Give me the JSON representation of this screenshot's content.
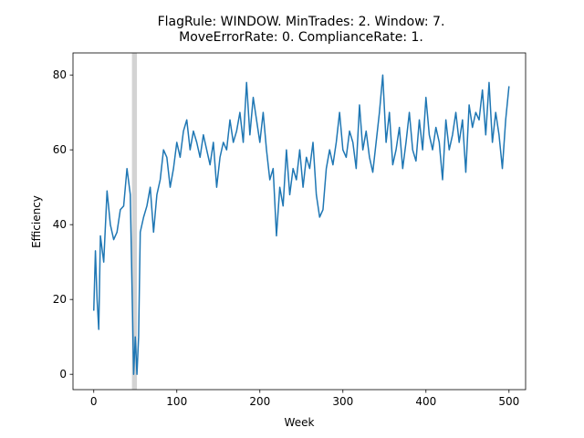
{
  "chart_data": {
    "type": "line",
    "title": [
      "FlagRule: WINDOW. MinTrades: 2. Window: 7.",
      "MoveErrorRate: 0. ComplianceRate: 1."
    ],
    "xlabel": "Week",
    "ylabel": "Efficiency",
    "x": [
      0,
      2,
      4,
      6,
      8,
      12,
      16,
      20,
      24,
      28,
      32,
      36,
      40,
      44,
      48,
      50,
      52,
      54,
      56,
      60,
      64,
      68,
      72,
      76,
      80,
      84,
      88,
      92,
      96,
      100,
      104,
      108,
      112,
      116,
      120,
      124,
      128,
      132,
      136,
      140,
      144,
      148,
      152,
      156,
      160,
      164,
      168,
      172,
      176,
      180,
      184,
      188,
      192,
      196,
      200,
      204,
      208,
      212,
      216,
      220,
      224,
      228,
      232,
      236,
      240,
      244,
      248,
      252,
      256,
      260,
      264,
      268,
      272,
      276,
      280,
      284,
      288,
      292,
      296,
      300,
      304,
      308,
      312,
      316,
      320,
      324,
      328,
      332,
      336,
      340,
      344,
      348,
      352,
      356,
      360,
      364,
      368,
      372,
      376,
      380,
      384,
      388,
      392,
      396,
      400,
      404,
      408,
      412,
      416,
      420,
      424,
      428,
      432,
      436,
      440,
      444,
      448,
      452,
      456,
      460,
      464,
      468,
      472,
      476,
      480,
      484,
      488,
      492,
      496,
      500
    ],
    "series": [
      {
        "name": "Efficiency",
        "color": "#1f77b4",
        "values": [
          17,
          33,
          20,
          12,
          37,
          30,
          49,
          40,
          36,
          38,
          44,
          45,
          55,
          48,
          0,
          10,
          0,
          10,
          38,
          42,
          45,
          50,
          38,
          48,
          52,
          60,
          58,
          50,
          55,
          62,
          58,
          65,
          68,
          60,
          65,
          62,
          58,
          64,
          60,
          56,
          62,
          50,
          58,
          62,
          60,
          68,
          62,
          65,
          70,
          62,
          78,
          64,
          74,
          68,
          62,
          70,
          60,
          52,
          55,
          37,
          50,
          45,
          60,
          48,
          55,
          52,
          60,
          50,
          58,
          55,
          62,
          48,
          42,
          44,
          55,
          60,
          56,
          62,
          70,
          60,
          58,
          65,
          62,
          55,
          72,
          60,
          65,
          58,
          54,
          62,
          70,
          80,
          62,
          70,
          56,
          60,
          66,
          55,
          62,
          70,
          60,
          57,
          68,
          60,
          74,
          64,
          60,
          66,
          62,
          52,
          68,
          60,
          64,
          70,
          62,
          68,
          54,
          72,
          66,
          70,
          68,
          76,
          64,
          78,
          62,
          70,
          64,
          55,
          68,
          77
        ]
      }
    ],
    "highlight_x": [
      46,
      52
    ],
    "highlight_color": "#d3d3d3",
    "xlim": [
      -25,
      520
    ],
    "ylim": [
      -4.1,
      85.9
    ],
    "xticks": [
      0,
      100,
      200,
      300,
      400,
      500
    ],
    "yticks": [
      0,
      20,
      40,
      60,
      80
    ],
    "grid": false
  }
}
